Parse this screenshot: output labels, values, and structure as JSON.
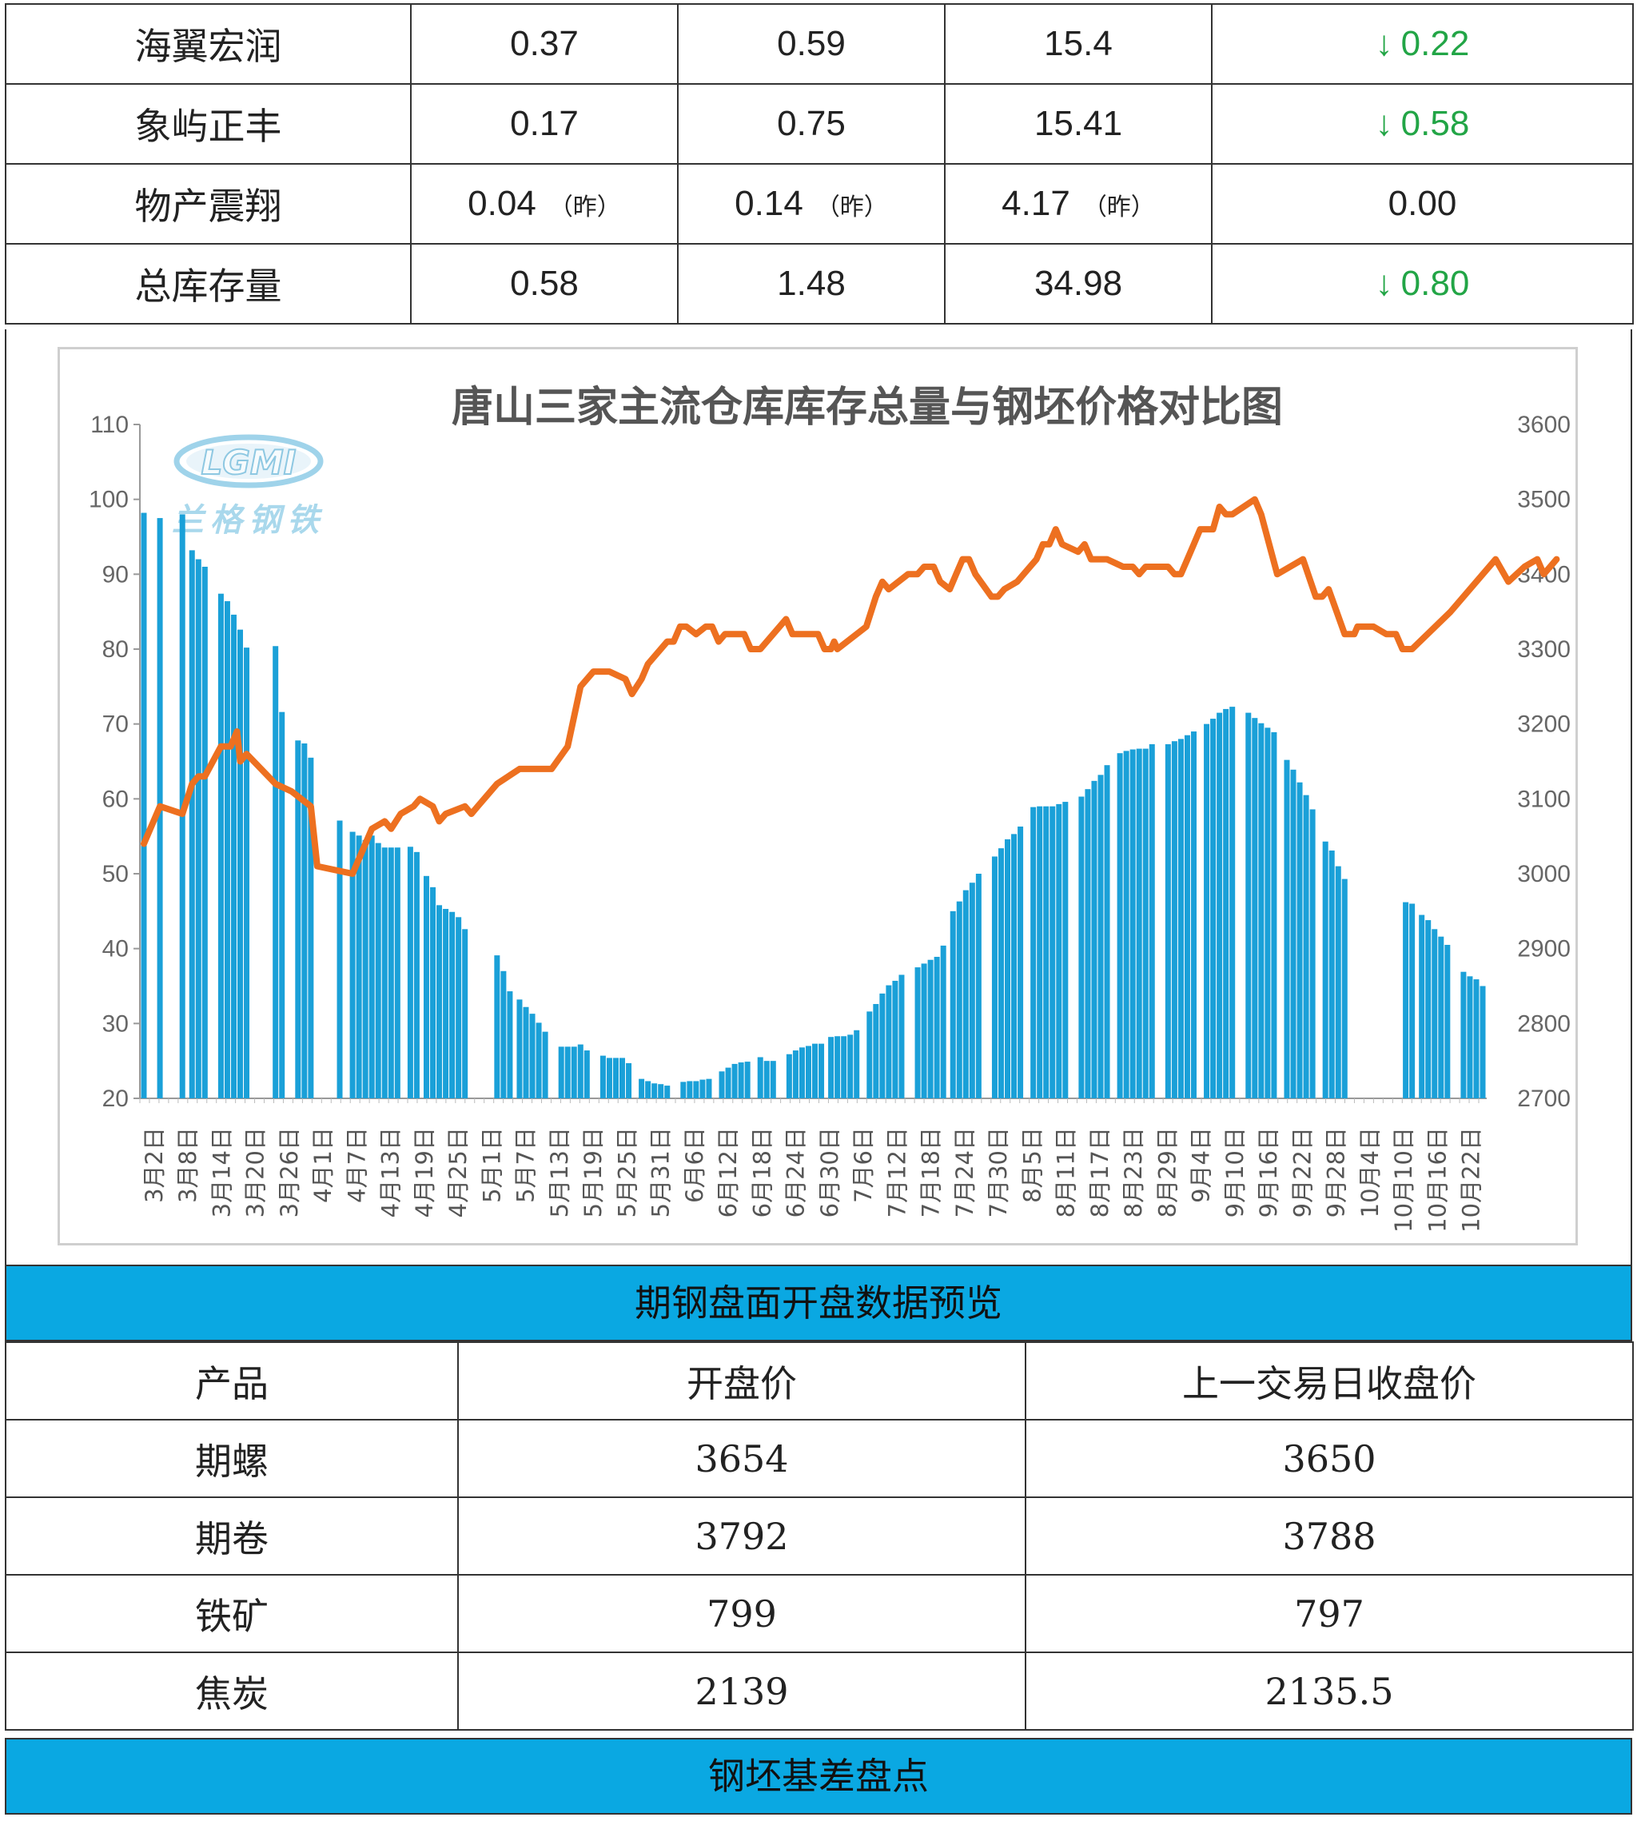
{
  "inventory_table": {
    "rows": [
      {
        "name": "海翼宏润",
        "c1": "0.37",
        "c2": "0.59",
        "c3": "15.4",
        "change": "0.22",
        "change_dir": "down"
      },
      {
        "name": "象屿正丰",
        "c1": "0.17",
        "c2": "0.75",
        "c3": "15.41",
        "change": "0.58",
        "change_dir": "down"
      },
      {
        "name": "物产震翔",
        "c1": "0.04",
        "c2": "0.14",
        "c3": "4.17",
        "suffix": "（昨）",
        "change": "0.00",
        "change_dir": "none"
      },
      {
        "name": "总库存量",
        "c1": "0.58",
        "c2": "1.48",
        "c3": "34.98",
        "change": "0.80",
        "change_dir": "down"
      }
    ],
    "arrow_down": "↓",
    "green": "#22a546"
  },
  "watermark": {
    "logo_text": "LGMI",
    "caption": "兰格钢铁"
  },
  "chart_data": {
    "type": "bar+line",
    "title": "唐山三家主流仓库库存总量与钢坯价格对比图",
    "y_left": {
      "min": 20,
      "max": 110,
      "ticks": [
        20,
        30,
        40,
        50,
        60,
        70,
        80,
        90,
        100,
        110
      ]
    },
    "y_right": {
      "min": 2700,
      "max": 3600,
      "ticks": [
        2700,
        2800,
        2900,
        3000,
        3100,
        3200,
        3300,
        3400,
        3500,
        3600
      ]
    },
    "x_labels": [
      "3月2日",
      "3月8日",
      "3月14日",
      "3月20日",
      "3月26日",
      "4月1日",
      "4月7日",
      "4月13日",
      "4月19日",
      "4月25日",
      "5月1日",
      "5月7日",
      "5月13日",
      "5月19日",
      "5月25日",
      "5月31日",
      "6月6日",
      "6月12日",
      "6月18日",
      "6月24日",
      "6月30日",
      "7月6日",
      "7月12日",
      "7月18日",
      "7月24日",
      "7月30日",
      "8月5日",
      "8月11日",
      "8月17日",
      "8月23日",
      "8月29日",
      "9月4日",
      "9月10日",
      "9月16日",
      "9月22日",
      "9月28日",
      "10月4日",
      "10月10日",
      "10月16日",
      "10月22日"
    ],
    "bar_color": "#1aa0d8",
    "line_color": "#ed7020",
    "bars": [
      [
        0,
        98.2
      ],
      [
        5,
        97.5
      ],
      [
        12,
        98
      ],
      [
        15,
        93.2
      ],
      [
        17,
        92
      ],
      [
        19,
        91
      ],
      [
        24,
        87.4
      ],
      [
        26,
        86.4
      ],
      [
        28,
        84.6
      ],
      [
        30,
        82.6
      ],
      [
        32,
        80.2
      ],
      [
        41,
        80.4
      ],
      [
        43,
        71.6
      ],
      [
        48,
        67.8
      ],
      [
        50,
        67.4
      ],
      [
        52,
        65.5
      ],
      [
        61,
        57.1
      ],
      [
        65,
        55.6
      ],
      [
        67,
        55.1
      ],
      [
        69,
        54.5
      ],
      [
        71,
        55.1
      ],
      [
        73,
        54.1
      ],
      [
        75,
        53.5
      ],
      [
        77,
        53.5
      ],
      [
        79,
        53.5
      ],
      [
        83,
        53.6
      ],
      [
        85,
        52.9
      ],
      [
        88,
        49.7
      ],
      [
        90,
        48.2
      ],
      [
        92,
        45.8
      ],
      [
        94,
        45.3
      ],
      [
        96,
        44.9
      ],
      [
        98,
        44.2
      ],
      [
        100,
        42.6
      ],
      [
        110,
        39.1
      ],
      [
        112,
        37
      ],
      [
        114,
        34.3
      ],
      [
        117,
        33.2
      ],
      [
        119,
        32.2
      ],
      [
        121,
        31.3
      ],
      [
        123,
        30.1
      ],
      [
        125,
        28.9
      ],
      [
        130,
        26.9
      ],
      [
        132,
        26.9
      ],
      [
        134,
        26.9
      ],
      [
        136,
        27.2
      ],
      [
        138,
        26.4
      ],
      [
        143,
        25.7
      ],
      [
        145,
        25.4
      ],
      [
        147,
        25.4
      ],
      [
        149,
        25.4
      ],
      [
        151,
        24.7
      ],
      [
        155,
        22.6
      ],
      [
        157,
        22.3
      ],
      [
        159,
        22
      ],
      [
        161,
        21.9
      ],
      [
        163,
        21.7
      ],
      [
        168,
        22.2
      ],
      [
        170,
        22.3
      ],
      [
        172,
        22.3
      ],
      [
        174,
        22.5
      ],
      [
        176,
        22.6
      ],
      [
        180,
        23.6
      ],
      [
        182,
        24.1
      ],
      [
        184,
        24.6
      ],
      [
        186,
        24.8
      ],
      [
        188,
        24.9
      ],
      [
        192,
        25.5
      ],
      [
        194,
        25
      ],
      [
        196,
        25
      ],
      [
        201,
        25.9
      ],
      [
        203,
        26.4
      ],
      [
        205,
        26.8
      ],
      [
        207,
        27
      ],
      [
        209,
        27.3
      ],
      [
        211,
        27.3
      ],
      [
        214,
        28.2
      ],
      [
        216,
        28.3
      ],
      [
        218,
        28.3
      ],
      [
        220,
        28.5
      ],
      [
        222,
        29.1
      ],
      [
        226,
        31.6
      ],
      [
        228,
        32.6
      ],
      [
        230,
        34
      ],
      [
        232,
        35.1
      ],
      [
        234,
        35.7
      ],
      [
        236,
        36.5
      ],
      [
        241,
        37.5
      ],
      [
        243,
        38
      ],
      [
        245,
        38.5
      ],
      [
        247,
        38.9
      ],
      [
        249,
        40.4
      ],
      [
        252,
        45
      ],
      [
        254,
        46.3
      ],
      [
        256,
        47.8
      ],
      [
        258,
        48.8
      ],
      [
        260,
        50
      ],
      [
        265,
        52.3
      ],
      [
        267,
        53.4
      ],
      [
        269,
        54.6
      ],
      [
        271,
        55.3
      ],
      [
        273,
        56.3
      ],
      [
        277,
        58.9
      ],
      [
        279,
        59
      ],
      [
        281,
        59
      ],
      [
        283,
        59
      ],
      [
        285,
        59.3
      ],
      [
        287,
        59.6
      ],
      [
        292,
        60.3
      ],
      [
        294,
        61.3
      ],
      [
        296,
        62.4
      ],
      [
        298,
        63.2
      ],
      [
        300,
        64.5
      ],
      [
        304,
        66.1
      ],
      [
        306,
        66.4
      ],
      [
        308,
        66.6
      ],
      [
        310,
        66.7
      ],
      [
        312,
        66.7
      ],
      [
        314,
        67.3
      ],
      [
        319,
        67.3
      ],
      [
        321,
        67.7
      ],
      [
        323,
        68
      ],
      [
        325,
        68.5
      ],
      [
        327,
        69
      ],
      [
        331,
        70
      ],
      [
        333,
        70.7
      ],
      [
        335,
        71.5
      ],
      [
        337,
        72
      ],
      [
        339,
        72.3
      ],
      [
        344,
        71.5
      ],
      [
        346,
        70.8
      ],
      [
        348,
        70.1
      ],
      [
        350,
        69.5
      ],
      [
        352,
        68.9
      ],
      [
        356,
        65.2
      ],
      [
        358,
        63.9
      ],
      [
        360,
        62.2
      ],
      [
        362,
        60.5
      ],
      [
        364,
        58.6
      ],
      [
        368,
        54.3
      ],
      [
        370,
        53.1
      ],
      [
        372,
        51
      ],
      [
        374,
        49.3
      ],
      [
        393,
        46.2
      ],
      [
        395,
        46
      ],
      [
        398,
        44.5
      ],
      [
        400,
        43.8
      ],
      [
        402,
        42.6
      ],
      [
        404,
        41.6
      ],
      [
        406,
        40.5
      ],
      [
        411,
        36.9
      ],
      [
        413,
        36.3
      ],
      [
        415,
        35.9
      ],
      [
        417,
        35
      ]
    ],
    "line": [
      [
        0,
        3040
      ],
      [
        5,
        3090
      ],
      [
        12,
        3080
      ],
      [
        15,
        3120
      ],
      [
        17,
        3130
      ],
      [
        19,
        3130
      ],
      [
        24,
        3170
      ],
      [
        27,
        3170
      ],
      [
        29,
        3190
      ],
      [
        30,
        3150
      ],
      [
        32,
        3160
      ],
      [
        41,
        3120
      ],
      [
        46,
        3110
      ],
      [
        52,
        3090
      ],
      [
        54,
        3010
      ],
      [
        65,
        3000
      ],
      [
        69,
        3040
      ],
      [
        71,
        3060
      ],
      [
        75,
        3070
      ],
      [
        77,
        3060
      ],
      [
        80,
        3080
      ],
      [
        84,
        3090
      ],
      [
        86,
        3100
      ],
      [
        90,
        3090
      ],
      [
        92,
        3070
      ],
      [
        94,
        3080
      ],
      [
        100,
        3090
      ],
      [
        102,
        3080
      ],
      [
        104,
        3090
      ],
      [
        110,
        3120
      ],
      [
        117,
        3140
      ],
      [
        127,
        3140
      ],
      [
        132,
        3170
      ],
      [
        136,
        3250
      ],
      [
        140,
        3270
      ],
      [
        145,
        3270
      ],
      [
        150,
        3260
      ],
      [
        152,
        3240
      ],
      [
        155,
        3260
      ],
      [
        157,
        3280
      ],
      [
        163,
        3310
      ],
      [
        165,
        3310
      ],
      [
        167,
        3330
      ],
      [
        169,
        3330
      ],
      [
        172,
        3320
      ],
      [
        175,
        3330
      ],
      [
        177,
        3330
      ],
      [
        179,
        3310
      ],
      [
        181,
        3320
      ],
      [
        187,
        3320
      ],
      [
        189,
        3300
      ],
      [
        192,
        3300
      ],
      [
        200,
        3340
      ],
      [
        202,
        3320
      ],
      [
        210,
        3320
      ],
      [
        212,
        3300
      ],
      [
        214,
        3300
      ],
      [
        215,
        3310
      ],
      [
        216,
        3300
      ],
      [
        225,
        3330
      ],
      [
        228,
        3370
      ],
      [
        230,
        3390
      ],
      [
        232,
        3380
      ],
      [
        238,
        3400
      ],
      [
        241,
        3400
      ],
      [
        243,
        3410
      ],
      [
        246,
        3410
      ],
      [
        248,
        3390
      ],
      [
        251,
        3380
      ],
      [
        253,
        3400
      ],
      [
        255,
        3420
      ],
      [
        257,
        3420
      ],
      [
        259,
        3400
      ],
      [
        264,
        3370
      ],
      [
        266,
        3370
      ],
      [
        268,
        3380
      ],
      [
        272,
        3390
      ],
      [
        274,
        3400
      ],
      [
        278,
        3420
      ],
      [
        280,
        3440
      ],
      [
        282,
        3440
      ],
      [
        284,
        3460
      ],
      [
        286,
        3440
      ],
      [
        291,
        3430
      ],
      [
        293,
        3440
      ],
      [
        295,
        3420
      ],
      [
        300,
        3420
      ],
      [
        305,
        3410
      ],
      [
        308,
        3410
      ],
      [
        310,
        3400
      ],
      [
        312,
        3410
      ],
      [
        319,
        3410
      ],
      [
        321,
        3400
      ],
      [
        323,
        3400
      ],
      [
        325,
        3420
      ],
      [
        327,
        3440
      ],
      [
        329,
        3460
      ],
      [
        333,
        3460
      ],
      [
        335,
        3490
      ],
      [
        337,
        3480
      ],
      [
        339,
        3480
      ],
      [
        346,
        3500
      ],
      [
        348,
        3480
      ],
      [
        353,
        3400
      ],
      [
        361,
        3420
      ],
      [
        365,
        3370
      ],
      [
        367,
        3370
      ],
      [
        369,
        3380
      ],
      [
        374,
        3320
      ],
      [
        377,
        3320
      ],
      [
        378,
        3330
      ],
      [
        383,
        3330
      ],
      [
        387,
        3320
      ],
      [
        390,
        3320
      ],
      [
        392,
        3300
      ],
      [
        395,
        3300
      ],
      [
        407,
        3350
      ],
      [
        421,
        3420
      ],
      [
        425,
        3390
      ],
      [
        430,
        3410
      ],
      [
        434,
        3420
      ],
      [
        436,
        3400
      ],
      [
        438,
        3410
      ],
      [
        440,
        3420
      ]
    ]
  },
  "futures": {
    "banner": "期钢盘面开盘数据预览",
    "headers": [
      "产品",
      "开盘价",
      "上一交易日收盘价"
    ],
    "rows": [
      {
        "product": "期螺",
        "open": "3654",
        "prev_close": "3650"
      },
      {
        "product": "期卷",
        "open": "3792",
        "prev_close": "3788"
      },
      {
        "product": "铁矿",
        "open": "799",
        "prev_close": "797"
      },
      {
        "product": "焦炭",
        "open": "2139",
        "prev_close": "2135.5"
      }
    ],
    "banner_color": "#0aa8e2"
  },
  "basis_banner": "钢坯基差盘点"
}
